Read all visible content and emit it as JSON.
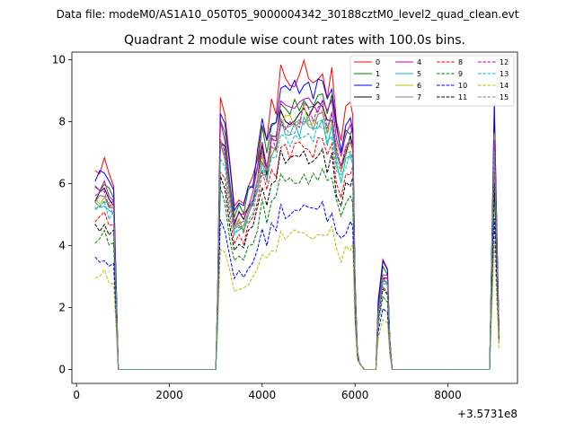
{
  "chart_data": {
    "type": "line",
    "suptitle": "Data file: modeM0/AS1A10_050T05_9000004342_30188cztM0_level2_quad_clean.evt",
    "title": "Quadrant 2 module wise count rates with 100.0s bins.",
    "xlabel": "",
    "ylabel": "",
    "x_offset_label": "+3.5731e8",
    "xlim": [
      -100,
      9500
    ],
    "ylim": [
      -0.45,
      10.25
    ],
    "xticks": [
      0,
      2000,
      4000,
      6000,
      8000
    ],
    "xtick_labels": [
      "0",
      "2000",
      "4000",
      "6000",
      "8000"
    ],
    "yticks": [
      0,
      2,
      4,
      6,
      8,
      10
    ],
    "ytick_labels": [
      "0",
      "2",
      "4",
      "6",
      "8",
      "10"
    ],
    "legend_position": "top-right",
    "series": [
      {
        "name": "0",
        "color": "#ff0000",
        "dash": "solid",
        "scale": 1.0,
        "seed": 1
      },
      {
        "name": "1",
        "color": "#008000",
        "dash": "solid",
        "scale": 0.93,
        "seed": 2
      },
      {
        "name": "2",
        "color": "#0000ff",
        "dash": "solid",
        "scale": 0.97,
        "seed": 3
      },
      {
        "name": "3",
        "color": "#000000",
        "dash": "solid",
        "scale": 0.88,
        "seed": 4
      },
      {
        "name": "4",
        "color": "#bf00bf",
        "dash": "solid",
        "scale": 0.9,
        "seed": 5
      },
      {
        "name": "5",
        "color": "#00bfbf",
        "dash": "solid",
        "scale": 0.83,
        "seed": 6
      },
      {
        "name": "6",
        "color": "#bfbf00",
        "dash": "solid",
        "scale": 0.86,
        "seed": 7
      },
      {
        "name": "7",
        "color": "#808080",
        "dash": "solid",
        "scale": 0.85,
        "seed": 8
      },
      {
        "name": "8",
        "color": "#ff0000",
        "dash": "dashed",
        "scale": 0.76,
        "seed": 9
      },
      {
        "name": "9",
        "color": "#008000",
        "dash": "dashed",
        "scale": 0.66,
        "seed": 10
      },
      {
        "name": "10",
        "color": "#0000ff",
        "dash": "dashed",
        "scale": 0.55,
        "seed": 11
      },
      {
        "name": "11",
        "color": "#000000",
        "dash": "dashed",
        "scale": 0.72,
        "seed": 12
      },
      {
        "name": "12",
        "color": "#bf00bf",
        "dash": "dashed",
        "scale": 0.87,
        "seed": 13
      },
      {
        "name": "13",
        "color": "#00bfbf",
        "dash": "dashed",
        "scale": 0.81,
        "seed": 14
      },
      {
        "name": "14",
        "color": "#bfbf00",
        "dash": "dashed",
        "scale": 0.47,
        "seed": 15
      },
      {
        "name": "15",
        "color": "#808080",
        "dash": "dashed",
        "scale": 0.84,
        "seed": 16
      }
    ],
    "base_profile": {
      "x": [
        400,
        500,
        600,
        700,
        800,
        850,
        900,
        1000,
        2000,
        3000,
        3040,
        3100,
        3200,
        3300,
        3400,
        3500,
        3600,
        3700,
        3800,
        3900,
        4000,
        4100,
        4200,
        4300,
        4400,
        4500,
        4600,
        4700,
        4800,
        4900,
        5000,
        5100,
        5200,
        5300,
        5400,
        5500,
        5600,
        5700,
        5800,
        5900,
        5950,
        6000,
        6050,
        6100,
        6200,
        6300,
        6450,
        6500,
        6600,
        6700,
        6750,
        6800,
        7000,
        8000,
        8900,
        8950,
        9000,
        9050,
        9100
      ],
      "y": [
        6.4,
        6.4,
        6.6,
        6.2,
        6.1,
        3.0,
        0.0,
        0.0,
        0.0,
        0.0,
        2.5,
        8.6,
        8.2,
        6.6,
        5.2,
        5.6,
        5.4,
        6.0,
        6.3,
        7.1,
        8.2,
        7.4,
        8.4,
        8.4,
        9.5,
        9.2,
        9.2,
        9.4,
        9.3,
        9.6,
        9.4,
        9.3,
        9.5,
        9.6,
        9.0,
        9.5,
        8.1,
        7.5,
        8.2,
        8.5,
        8.3,
        3.0,
        0.6,
        0.2,
        0.0,
        0.0,
        0.0,
        2.2,
        3.5,
        3.3,
        1.0,
        0.0,
        0.0,
        0.0,
        0.0,
        4.5,
        8.6,
        5.0,
        1.4
      ]
    }
  }
}
